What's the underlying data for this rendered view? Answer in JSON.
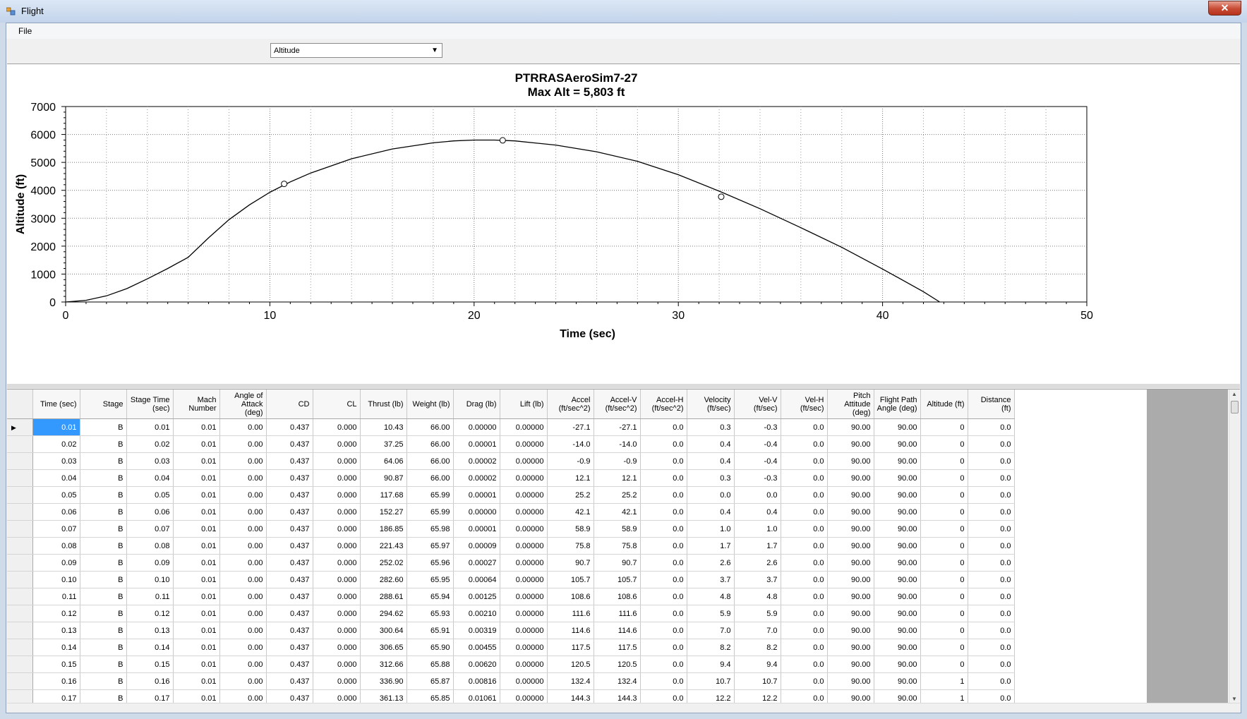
{
  "window": {
    "title": "Flight",
    "close_label": "✕"
  },
  "menu": {
    "file_label": "File"
  },
  "plot_selector": {
    "value": "Altitude",
    "arrow": "▼"
  },
  "chart_data": {
    "type": "line",
    "title": "PTRRASAeroSim7-27",
    "subtitle": "Max Alt = 5,803 ft",
    "xlabel": "Time (sec)",
    "ylabel": "Altitude (ft)",
    "xlim": [
      0,
      50
    ],
    "ylim": [
      0,
      7000
    ],
    "x_ticks": [
      0,
      10,
      20,
      30,
      40,
      50
    ],
    "y_ticks": [
      0,
      1000,
      2000,
      3000,
      4000,
      5000,
      6000,
      7000
    ],
    "grid": true,
    "series": [
      {
        "x": [
          0,
          1,
          2,
          3,
          4,
          5,
          6,
          7,
          8,
          9,
          10,
          11,
          12,
          14,
          16,
          18,
          19,
          20,
          21,
          22,
          24,
          26,
          28,
          30,
          32,
          34,
          36,
          38,
          40,
          42,
          42.8
        ],
        "y": [
          0,
          60,
          220,
          480,
          830,
          1200,
          1600,
          2300,
          2950,
          3480,
          3930,
          4300,
          4620,
          5130,
          5480,
          5700,
          5770,
          5800,
          5800,
          5770,
          5620,
          5380,
          5040,
          4560,
          3970,
          3340,
          2660,
          1960,
          1180,
          370,
          0
        ]
      }
    ],
    "markers": [
      {
        "x": 10.7,
        "y": 4230
      },
      {
        "x": 21.4,
        "y": 5790
      },
      {
        "x": 32.1,
        "y": 3770
      }
    ]
  },
  "grid": {
    "columns": [
      "Time (sec)",
      "Stage",
      "Stage Time (sec)",
      "Mach Number",
      "Angle of Attack (deg)",
      "CD",
      "CL",
      "Thrust (lb)",
      "Weight (lb)",
      "Drag (lb)",
      "Lift (lb)",
      "Accel (ft/sec^2)",
      "Accel-V (ft/sec^2)",
      "Accel-H (ft/sec^2)",
      "Velocity (ft/sec)",
      "Vel-V (ft/sec)",
      "Vel-H (ft/sec)",
      "Pitch Attitude (deg)",
      "Flight Path Angle (deg)",
      "Altitude (ft)",
      "Distance (ft)"
    ],
    "current_row_marker": "▶",
    "rows": [
      [
        "0.01",
        "B",
        "0.01",
        "0.01",
        "0.00",
        "0.437",
        "0.000",
        "10.43",
        "66.00",
        "0.00000",
        "0.00000",
        "-27.1",
        "-27.1",
        "0.0",
        "0.3",
        "-0.3",
        "0.0",
        "90.00",
        "90.00",
        "0",
        "0.0"
      ],
      [
        "0.02",
        "B",
        "0.02",
        "0.01",
        "0.00",
        "0.437",
        "0.000",
        "37.25",
        "66.00",
        "0.00001",
        "0.00000",
        "-14.0",
        "-14.0",
        "0.0",
        "0.4",
        "-0.4",
        "0.0",
        "90.00",
        "90.00",
        "0",
        "0.0"
      ],
      [
        "0.03",
        "B",
        "0.03",
        "0.01",
        "0.00",
        "0.437",
        "0.000",
        "64.06",
        "66.00",
        "0.00002",
        "0.00000",
        "-0.9",
        "-0.9",
        "0.0",
        "0.4",
        "-0.4",
        "0.0",
        "90.00",
        "90.00",
        "0",
        "0.0"
      ],
      [
        "0.04",
        "B",
        "0.04",
        "0.01",
        "0.00",
        "0.437",
        "0.000",
        "90.87",
        "66.00",
        "0.00002",
        "0.00000",
        "12.1",
        "12.1",
        "0.0",
        "0.3",
        "-0.3",
        "0.0",
        "90.00",
        "90.00",
        "0",
        "0.0"
      ],
      [
        "0.05",
        "B",
        "0.05",
        "0.01",
        "0.00",
        "0.437",
        "0.000",
        "117.68",
        "65.99",
        "0.00001",
        "0.00000",
        "25.2",
        "25.2",
        "0.0",
        "0.0",
        "0.0",
        "0.0",
        "90.00",
        "90.00",
        "0",
        "0.0"
      ],
      [
        "0.06",
        "B",
        "0.06",
        "0.01",
        "0.00",
        "0.437",
        "0.000",
        "152.27",
        "65.99",
        "0.00000",
        "0.00000",
        "42.1",
        "42.1",
        "0.0",
        "0.4",
        "0.4",
        "0.0",
        "90.00",
        "90.00",
        "0",
        "0.0"
      ],
      [
        "0.07",
        "B",
        "0.07",
        "0.01",
        "0.00",
        "0.437",
        "0.000",
        "186.85",
        "65.98",
        "0.00001",
        "0.00000",
        "58.9",
        "58.9",
        "0.0",
        "1.0",
        "1.0",
        "0.0",
        "90.00",
        "90.00",
        "0",
        "0.0"
      ],
      [
        "0.08",
        "B",
        "0.08",
        "0.01",
        "0.00",
        "0.437",
        "0.000",
        "221.43",
        "65.97",
        "0.00009",
        "0.00000",
        "75.8",
        "75.8",
        "0.0",
        "1.7",
        "1.7",
        "0.0",
        "90.00",
        "90.00",
        "0",
        "0.0"
      ],
      [
        "0.09",
        "B",
        "0.09",
        "0.01",
        "0.00",
        "0.437",
        "0.000",
        "252.02",
        "65.96",
        "0.00027",
        "0.00000",
        "90.7",
        "90.7",
        "0.0",
        "2.6",
        "2.6",
        "0.0",
        "90.00",
        "90.00",
        "0",
        "0.0"
      ],
      [
        "0.10",
        "B",
        "0.10",
        "0.01",
        "0.00",
        "0.437",
        "0.000",
        "282.60",
        "65.95",
        "0.00064",
        "0.00000",
        "105.7",
        "105.7",
        "0.0",
        "3.7",
        "3.7",
        "0.0",
        "90.00",
        "90.00",
        "0",
        "0.0"
      ],
      [
        "0.11",
        "B",
        "0.11",
        "0.01",
        "0.00",
        "0.437",
        "0.000",
        "288.61",
        "65.94",
        "0.00125",
        "0.00000",
        "108.6",
        "108.6",
        "0.0",
        "4.8",
        "4.8",
        "0.0",
        "90.00",
        "90.00",
        "0",
        "0.0"
      ],
      [
        "0.12",
        "B",
        "0.12",
        "0.01",
        "0.00",
        "0.437",
        "0.000",
        "294.62",
        "65.93",
        "0.00210",
        "0.00000",
        "111.6",
        "111.6",
        "0.0",
        "5.9",
        "5.9",
        "0.0",
        "90.00",
        "90.00",
        "0",
        "0.0"
      ],
      [
        "0.13",
        "B",
        "0.13",
        "0.01",
        "0.00",
        "0.437",
        "0.000",
        "300.64",
        "65.91",
        "0.00319",
        "0.00000",
        "114.6",
        "114.6",
        "0.0",
        "7.0",
        "7.0",
        "0.0",
        "90.00",
        "90.00",
        "0",
        "0.0"
      ],
      [
        "0.14",
        "B",
        "0.14",
        "0.01",
        "0.00",
        "0.437",
        "0.000",
        "306.65",
        "65.90",
        "0.00455",
        "0.00000",
        "117.5",
        "117.5",
        "0.0",
        "8.2",
        "8.2",
        "0.0",
        "90.00",
        "90.00",
        "0",
        "0.0"
      ],
      [
        "0.15",
        "B",
        "0.15",
        "0.01",
        "0.00",
        "0.437",
        "0.000",
        "312.66",
        "65.88",
        "0.00620",
        "0.00000",
        "120.5",
        "120.5",
        "0.0",
        "9.4",
        "9.4",
        "0.0",
        "90.00",
        "90.00",
        "0",
        "0.0"
      ],
      [
        "0.16",
        "B",
        "0.16",
        "0.01",
        "0.00",
        "0.437",
        "0.000",
        "336.90",
        "65.87",
        "0.00816",
        "0.00000",
        "132.4",
        "132.4",
        "0.0",
        "10.7",
        "10.7",
        "0.0",
        "90.00",
        "90.00",
        "1",
        "0.0"
      ],
      [
        "0.17",
        "B",
        "0.17",
        "0.01",
        "0.00",
        "0.437",
        "0.000",
        "361.13",
        "65.85",
        "0.01061",
        "0.00000",
        "144.3",
        "144.3",
        "0.0",
        "12.2",
        "12.2",
        "0.0",
        "90.00",
        "90.00",
        "1",
        "0.0"
      ]
    ]
  },
  "scrollbar": {
    "up": "▲",
    "down": "▼"
  }
}
